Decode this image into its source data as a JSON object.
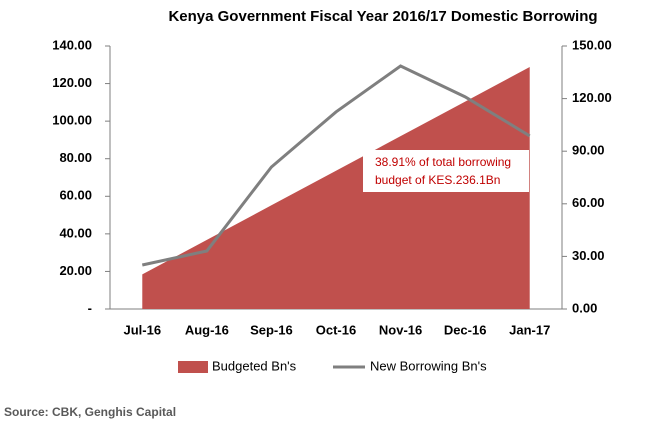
{
  "chart_data": {
    "type": "area-line",
    "title": "Kenya Government Fiscal Year 2016/17 Domestic Borrowing",
    "categories": [
      "Jul-16",
      "Aug-16",
      "Sep-16",
      "Oct-16",
      "Nov-16",
      "Dec-16",
      "Jan-17"
    ],
    "series": [
      {
        "name": "Budgeted Bn's",
        "color": "#c0504d",
        "kind": "area",
        "values": [
          18.4,
          36.8,
          55.2,
          73.6,
          92.0,
          110.4,
          128.8
        ]
      },
      {
        "name": "New Borrowing Bn's",
        "color": "#7f7f7f",
        "kind": "line",
        "axis": "y2",
        "values": [
          25.1,
          33.1,
          81.0,
          112.4,
          138.6,
          121.0,
          98.7
        ]
      }
    ],
    "ylim": [
      0,
      140
    ],
    "yticks": [
      {
        "value": 0,
        "label": "-"
      },
      {
        "value": 20,
        "label": "20.00"
      },
      {
        "value": 40,
        "label": "40.00"
      },
      {
        "value": 60,
        "label": "60.00"
      },
      {
        "value": 80,
        "label": "80.00"
      },
      {
        "value": 100,
        "label": "100.00"
      },
      {
        "value": 120,
        "label": "120.00"
      },
      {
        "value": 140,
        "label": "140.00"
      }
    ],
    "y2lim": [
      0,
      150
    ],
    "y2ticks": [
      {
        "value": 0,
        "label": "0.00"
      },
      {
        "value": 30,
        "label": "30.00"
      },
      {
        "value": 60,
        "label": "60.00"
      },
      {
        "value": 90,
        "label": "90.00"
      },
      {
        "value": 120,
        "label": "120.00"
      },
      {
        "value": 150,
        "label": "150.00"
      }
    ],
    "annotation": [
      "38.91% of total borrowing",
      "budget of KES.236.1Bn"
    ],
    "source": "Source: CBK, Genghis Capital"
  }
}
